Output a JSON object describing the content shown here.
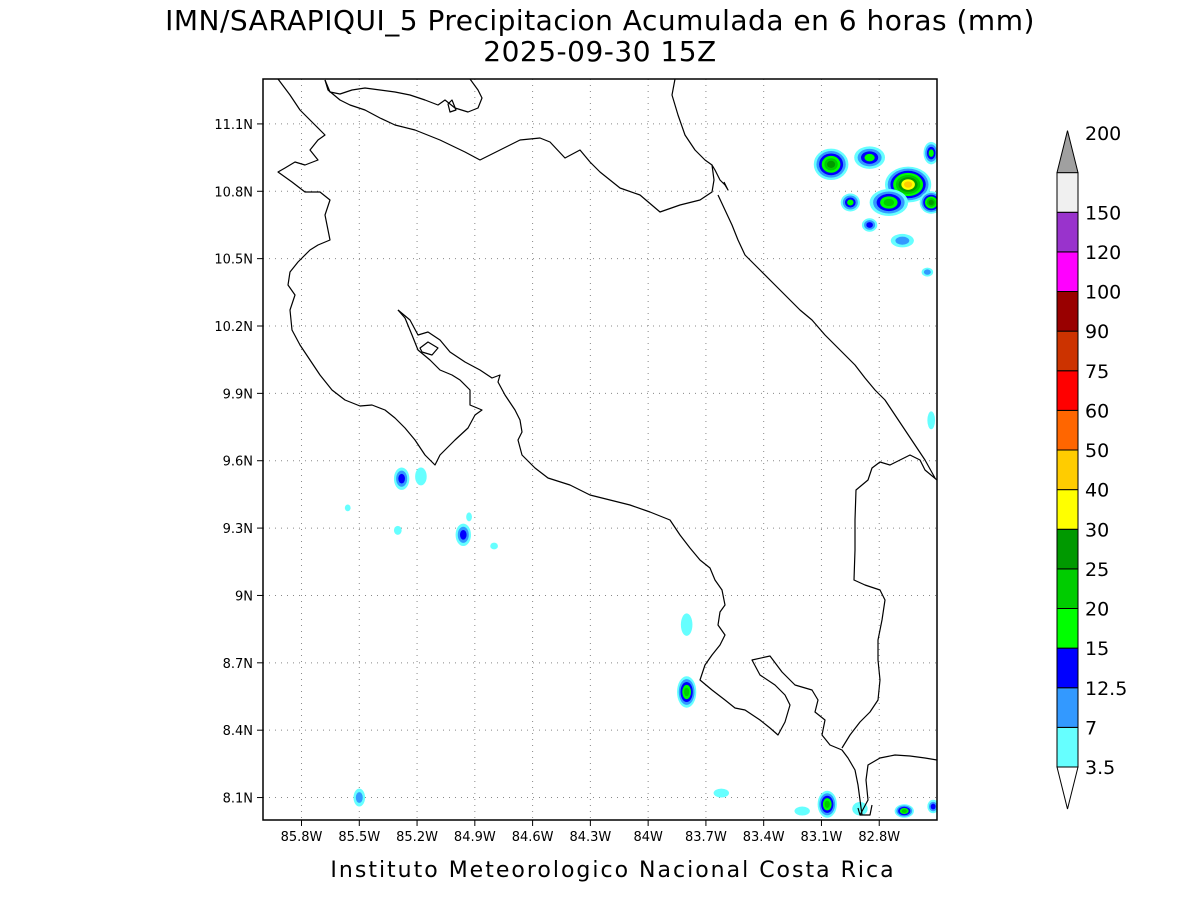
{
  "header": {
    "title_line1": "IMN/SARAPIQUI_5 Precipitacion Acumulada en 6 horas (mm)",
    "title_line2": "2025-09-30 15Z"
  },
  "footer": {
    "credit": "Instituto Meteorologico Nacional Costa Rica"
  },
  "map": {
    "lon_range": [
      -86.0,
      -82.5
    ],
    "lat_range": [
      8.0,
      11.3
    ],
    "x_ticks": [
      {
        "value": -85.8,
        "label": "85.8W"
      },
      {
        "value": -85.5,
        "label": "85.5W"
      },
      {
        "value": -85.2,
        "label": "85.2W"
      },
      {
        "value": -84.9,
        "label": "84.9W"
      },
      {
        "value": -84.6,
        "label": "84.6W"
      },
      {
        "value": -84.3,
        "label": "84.3W"
      },
      {
        "value": -84.0,
        "label": "84W"
      },
      {
        "value": -83.7,
        "label": "83.7W"
      },
      {
        "value": -83.4,
        "label": "83.4W"
      },
      {
        "value": -83.1,
        "label": "83.1W"
      },
      {
        "value": -82.8,
        "label": "82.8W"
      }
    ],
    "y_ticks": [
      {
        "value": 11.1,
        "label": "11.1N"
      },
      {
        "value": 10.8,
        "label": "10.8N"
      },
      {
        "value": 10.5,
        "label": "10.5N"
      },
      {
        "value": 10.2,
        "label": "10.2N"
      },
      {
        "value": 9.9,
        "label": "9.9N"
      },
      {
        "value": 9.6,
        "label": "9.6N"
      },
      {
        "value": 9.3,
        "label": "9.3N"
      },
      {
        "value": 9.0,
        "label": "9N"
      },
      {
        "value": 8.7,
        "label": "8.7N"
      },
      {
        "value": 8.4,
        "label": "8.4N"
      },
      {
        "value": 8.1,
        "label": "8.1N"
      }
    ]
  },
  "colorbar": {
    "levels": [
      {
        "label": "3.5",
        "color": "#66ffff"
      },
      {
        "label": "7",
        "color": "#3399ff"
      },
      {
        "label": "12.5",
        "color": "#0000ff"
      },
      {
        "label": "15",
        "color": "#00ff00"
      },
      {
        "label": "20",
        "color": "#00cc00"
      },
      {
        "label": "25",
        "color": "#009900"
      },
      {
        "label": "30",
        "color": "#ffff00"
      },
      {
        "label": "40",
        "color": "#ffcc00"
      },
      {
        "label": "50",
        "color": "#ff6600"
      },
      {
        "label": "60",
        "color": "#ff0000"
      },
      {
        "label": "75",
        "color": "#cc3300"
      },
      {
        "label": "90",
        "color": "#990000"
      },
      {
        "label": "100",
        "color": "#ff00ff"
      },
      {
        "label": "120",
        "color": "#9933cc"
      },
      {
        "label": "150",
        "color": "#f0f0f0"
      },
      {
        "label": "200",
        "color": "#a0a0a0"
      }
    ]
  },
  "precip_cells": [
    {
      "lon": -83.05,
      "lat": 10.92,
      "rx": 0.09,
      "ry": 0.07,
      "max_level": 5
    },
    {
      "lon": -82.85,
      "lat": 10.95,
      "rx": 0.08,
      "ry": 0.05,
      "max_level": 3
    },
    {
      "lon": -82.65,
      "lat": 10.83,
      "rx": 0.12,
      "ry": 0.08,
      "max_level": 7
    },
    {
      "lon": -82.75,
      "lat": 10.75,
      "rx": 0.1,
      "ry": 0.06,
      "max_level": 4
    },
    {
      "lon": -82.53,
      "lat": 10.75,
      "rx": 0.06,
      "ry": 0.05,
      "max_level": 5
    },
    {
      "lon": -82.53,
      "lat": 10.97,
      "rx": 0.04,
      "ry": 0.05,
      "max_level": 3
    },
    {
      "lon": -82.95,
      "lat": 10.75,
      "rx": 0.05,
      "ry": 0.04,
      "max_level": 3
    },
    {
      "lon": -82.85,
      "lat": 10.65,
      "rx": 0.04,
      "ry": 0.03,
      "max_level": 2
    },
    {
      "lon": -82.68,
      "lat": 10.58,
      "rx": 0.06,
      "ry": 0.03,
      "max_level": 1
    },
    {
      "lon": -82.55,
      "lat": 10.44,
      "rx": 0.03,
      "ry": 0.02,
      "max_level": 1
    },
    {
      "lon": -82.53,
      "lat": 9.78,
      "rx": 0.02,
      "ry": 0.04,
      "max_level": 0
    },
    {
      "lon": -85.28,
      "lat": 9.52,
      "rx": 0.04,
      "ry": 0.05,
      "max_level": 2
    },
    {
      "lon": -85.18,
      "lat": 9.53,
      "rx": 0.03,
      "ry": 0.04,
      "max_level": 0
    },
    {
      "lon": -84.96,
      "lat": 9.27,
      "rx": 0.04,
      "ry": 0.05,
      "max_level": 2
    },
    {
      "lon": -84.93,
      "lat": 9.35,
      "rx": 0.015,
      "ry": 0.02,
      "max_level": 0
    },
    {
      "lon": -84.8,
      "lat": 9.22,
      "rx": 0.02,
      "ry": 0.015,
      "max_level": 0
    },
    {
      "lon": -85.3,
      "lat": 9.29,
      "rx": 0.02,
      "ry": 0.02,
      "max_level": 0
    },
    {
      "lon": -85.56,
      "lat": 9.39,
      "rx": 0.015,
      "ry": 0.015,
      "max_level": 0
    },
    {
      "lon": -83.8,
      "lat": 8.87,
      "rx": 0.03,
      "ry": 0.05,
      "max_level": 0
    },
    {
      "lon": -83.8,
      "lat": 8.57,
      "rx": 0.05,
      "ry": 0.07,
      "max_level": 4
    },
    {
      "lon": -83.62,
      "lat": 8.12,
      "rx": 0.04,
      "ry": 0.02,
      "max_level": 0
    },
    {
      "lon": -83.07,
      "lat": 8.07,
      "rx": 0.05,
      "ry": 0.06,
      "max_level": 4
    },
    {
      "lon": -83.2,
      "lat": 8.04,
      "rx": 0.04,
      "ry": 0.02,
      "max_level": 0
    },
    {
      "lon": -82.9,
      "lat": 8.05,
      "rx": 0.04,
      "ry": 0.03,
      "max_level": 0
    },
    {
      "lon": -82.67,
      "lat": 8.04,
      "rx": 0.05,
      "ry": 0.03,
      "max_level": 4
    },
    {
      "lon": -82.52,
      "lat": 8.06,
      "rx": 0.03,
      "ry": 0.03,
      "max_level": 2
    },
    {
      "lon": -85.5,
      "lat": 8.1,
      "rx": 0.03,
      "ry": 0.04,
      "max_level": 1
    }
  ]
}
